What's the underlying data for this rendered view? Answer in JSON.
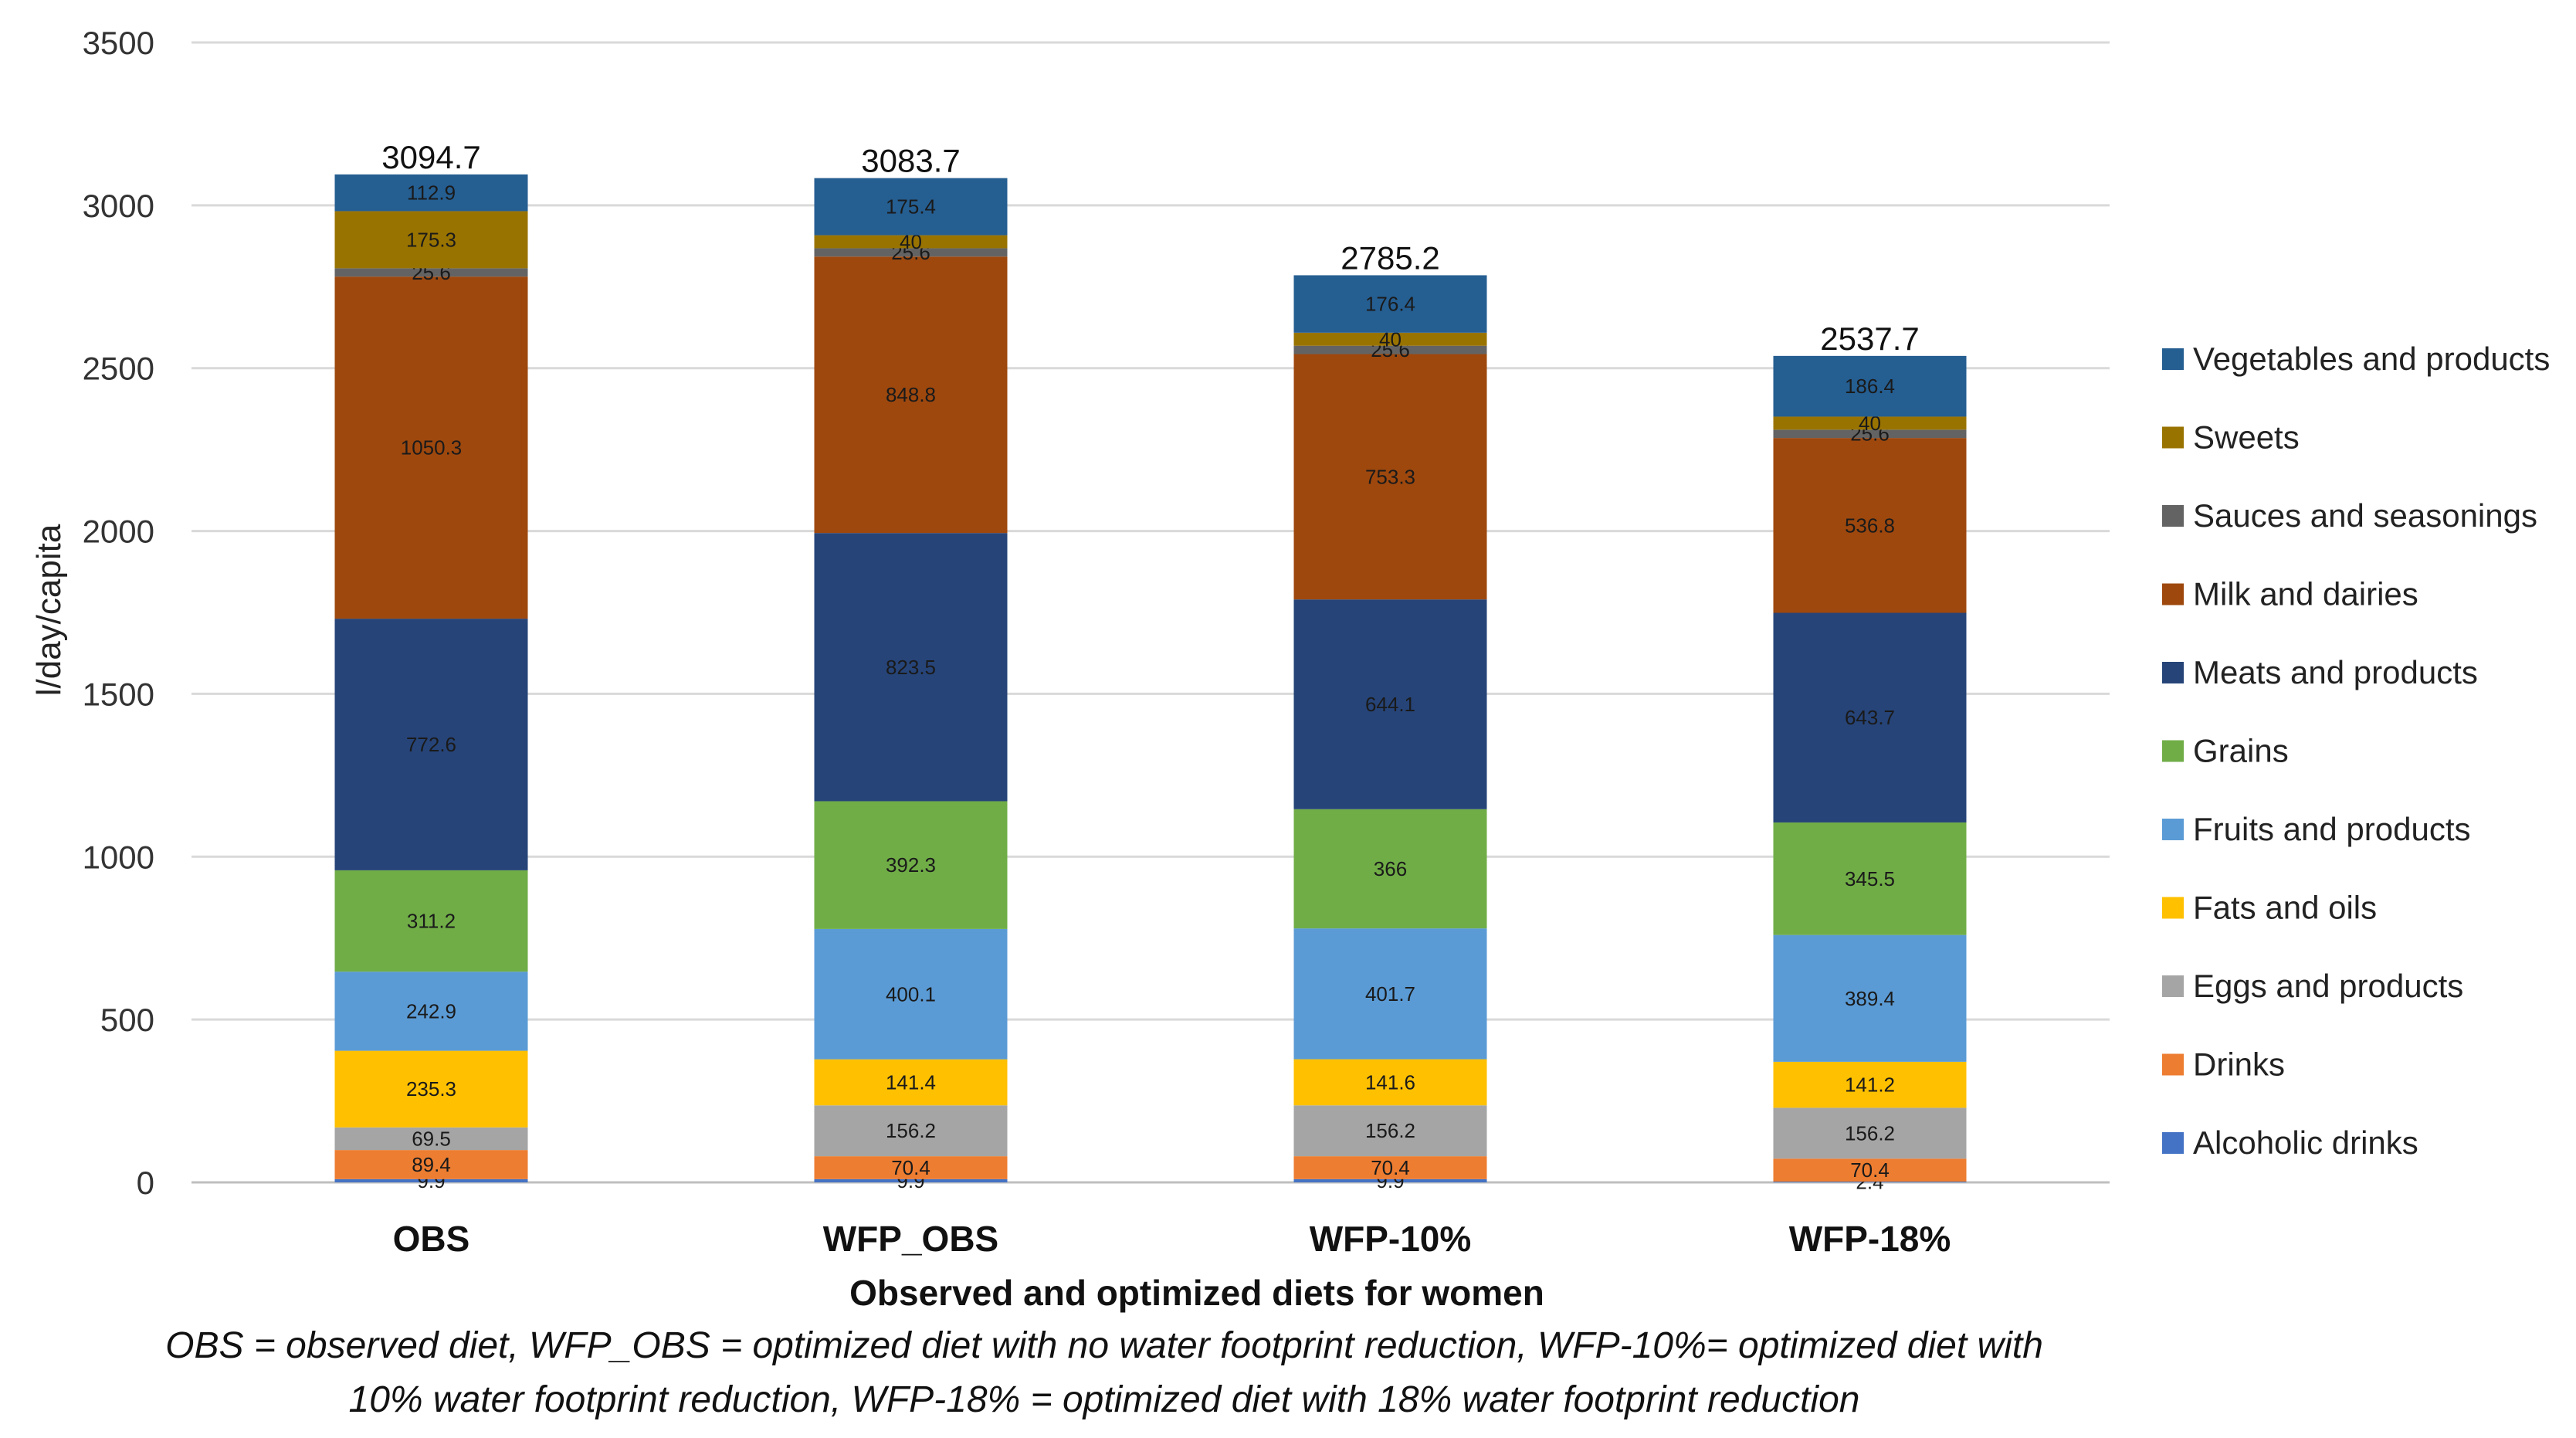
{
  "chart_data": {
    "type": "bar",
    "stacked": true,
    "ylabel": "l/day/capita",
    "xlabel": "Observed and optimized diets for women",
    "ylim": [
      0,
      3500
    ],
    "yticks": [
      0,
      500,
      1000,
      1500,
      2000,
      2500,
      3000,
      3500
    ],
    "grid": true,
    "legend_position": "right",
    "categories": [
      "OBS",
      "WFP_OBS",
      "WFP-10%",
      "WFP-18%"
    ],
    "totals": [
      "3094.7",
      "3083.7",
      "2785.2",
      "2537.7"
    ],
    "series": [
      {
        "name": "Alcoholic drinks",
        "color": "#4472c4",
        "values": [
          9.9,
          9.9,
          9.9,
          2.4
        ],
        "labels": [
          "9.9",
          "9.9",
          "9.9",
          "2.4"
        ]
      },
      {
        "name": "Drinks",
        "color": "#ed7d31",
        "values": [
          89.4,
          70.4,
          70.4,
          70.4
        ],
        "labels": [
          "89.4",
          "70.4",
          "70.4",
          "70.4"
        ]
      },
      {
        "name": "Eggs and products",
        "color": "#a5a5a5",
        "values": [
          69.5,
          156.2,
          156.2,
          156.2
        ],
        "labels": [
          "69.5",
          "156.2",
          "156.2",
          "156.2"
        ]
      },
      {
        "name": "Fats and oils",
        "color": "#ffc000",
        "values": [
          235.3,
          141.4,
          141.6,
          141.2
        ],
        "labels": [
          "235.3",
          "141.4",
          "141.6",
          "141.2"
        ]
      },
      {
        "name": "Fruits and products",
        "color": "#5b9bd5",
        "values": [
          242.9,
          400.1,
          401.7,
          389.4
        ],
        "labels": [
          "242.9",
          "400.1",
          "401.7",
          "389.4"
        ]
      },
      {
        "name": "Grains",
        "color": "#70ad47",
        "values": [
          311.2,
          392.3,
          366,
          345.5
        ],
        "labels": [
          "311.2",
          "392.3",
          "366",
          "345.5"
        ]
      },
      {
        "name": "Meats and products",
        "color": "#264478",
        "values": [
          772.6,
          823.5,
          644.1,
          643.7
        ],
        "labels": [
          "772.6",
          "823.5",
          "644.1",
          "643.7"
        ]
      },
      {
        "name": "Milk and dairies",
        "color": "#9e480e",
        "values": [
          1050.3,
          848.8,
          753.3,
          536.8
        ],
        "labels": [
          "1050.3",
          "848.8",
          "753.3",
          "536.8"
        ]
      },
      {
        "name": "Sauces and seasonings",
        "color": "#636363",
        "values": [
          25.6,
          25.6,
          25.6,
          25.6
        ],
        "labels": [
          "25.6",
          "25.6",
          "25.6",
          "25.6"
        ]
      },
      {
        "name": "Sweets",
        "color": "#997300",
        "values": [
          175.3,
          40,
          40,
          40
        ],
        "labels": [
          "175.3",
          "40",
          "40",
          "40"
        ]
      },
      {
        "name": "Vegetables and products",
        "color": "#255e91",
        "values": [
          112.9,
          175.4,
          176.4,
          186.4
        ],
        "labels": [
          "112.9",
          "175.4",
          "176.4",
          "186.4"
        ]
      }
    ]
  },
  "caption": {
    "line1": "OBS = observed diet, WFP_OBS = optimized diet with no water footprint reduction, WFP-10%= optimized diet with",
    "line2": "10% water footprint reduction, WFP-18% = optimized diet with 18% water footprint reduction"
  }
}
